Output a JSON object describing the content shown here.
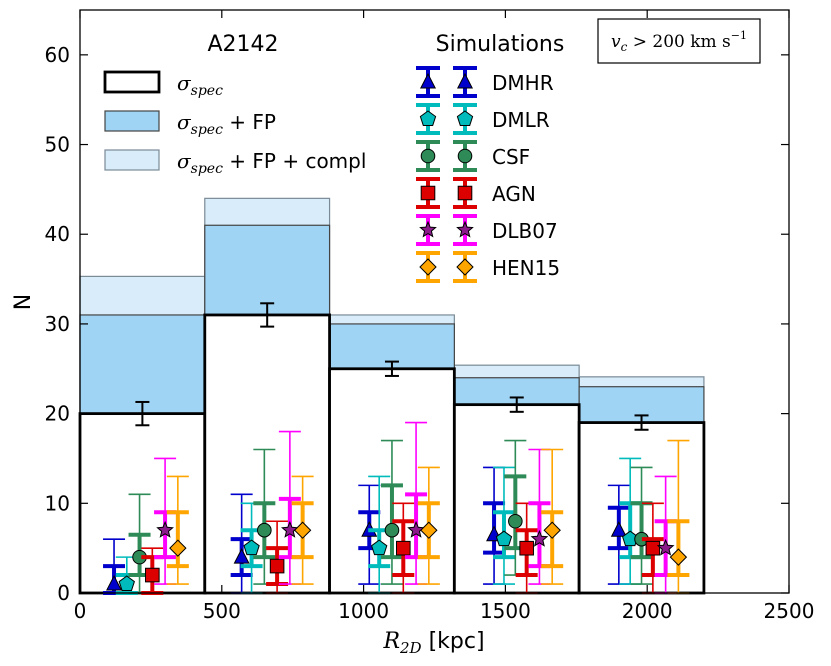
{
  "chart_data": {
    "type": "bar",
    "title": "A2142",
    "xlabel_math": "R",
    "xlabel_sub": "2D",
    "xlabel_unit": " [kpc]",
    "ylabel": "N",
    "xlim": [
      0,
      2500
    ],
    "ylim": [
      0,
      65
    ],
    "xticks": [
      0,
      500,
      1000,
      1500,
      2000,
      2500
    ],
    "yticks": [
      0,
      10,
      20,
      30,
      40,
      50,
      60
    ],
    "velocity_cut": {
      "math": "v",
      "sub": "c",
      "rel": " > 200 ",
      "unit": "km s",
      "exp": "−1"
    },
    "bin_edges": [
      0,
      440,
      880,
      1320,
      1760,
      2200
    ],
    "observed": [
      {
        "name": "σ_spec",
        "label_math": "σ",
        "label_sub": "spec",
        "label_rest": "",
        "fill": "#ffffff",
        "values": [
          20,
          31,
          25,
          21,
          19
        ],
        "errors": [
          1.3,
          1.3,
          0.8,
          0.8,
          0.8
        ]
      },
      {
        "name": "σ_spec + FP",
        "label_math": "σ",
        "label_sub": "spec",
        "label_rest": " + FP",
        "fill": "#9fd4f5",
        "values": [
          31,
          41,
          30,
          24,
          23
        ]
      },
      {
        "name": "σ_spec + FP + compl",
        "label_math": "σ",
        "label_sub": "spec",
        "label_rest": " + FP + compl",
        "fill": "#d8edf9",
        "values": [
          35.3,
          44,
          31,
          25.4,
          24.1
        ]
      }
    ],
    "simulations_title": "Simulations",
    "simulations": [
      {
        "name": "DMHR",
        "color": "#0000cc",
        "marker": "triangle",
        "x": [
          120,
          570,
          1020,
          1460,
          1900
        ],
        "median": [
          1,
          4,
          7,
          6.5,
          7
        ],
        "inner": [
          [
            0,
            3
          ],
          [
            2,
            6
          ],
          [
            5,
            9
          ],
          [
            4.5,
            10
          ],
          [
            5,
            9.5
          ]
        ],
        "outer": [
          [
            0,
            6
          ],
          [
            0,
            11
          ],
          [
            1,
            12
          ],
          [
            1,
            14
          ],
          [
            1,
            12
          ]
        ]
      },
      {
        "name": "DMLR",
        "color": "#00bbbb",
        "marker": "pentagon",
        "x": [
          165,
          605,
          1055,
          1495,
          1940
        ],
        "median": [
          1,
          5,
          5,
          6,
          6
        ],
        "inner": [
          [
            0,
            2
          ],
          [
            3,
            7
          ],
          [
            3,
            7
          ],
          [
            4,
            9
          ],
          [
            4,
            10
          ]
        ],
        "outer": [
          [
            0,
            4
          ],
          [
            0,
            10
          ],
          [
            0,
            13
          ],
          [
            1,
            14
          ],
          [
            1,
            15
          ]
        ]
      },
      {
        "name": "CSF",
        "color": "#2e8b57",
        "marker": "circle",
        "x": [
          210,
          650,
          1100,
          1535,
          1980
        ],
        "median": [
          4,
          7,
          7,
          8,
          6
        ],
        "inner": [
          [
            2,
            6.5
          ],
          [
            4,
            10
          ],
          [
            4,
            12
          ],
          [
            5,
            13
          ],
          [
            4,
            10
          ]
        ],
        "outer": [
          [
            0,
            11
          ],
          [
            1,
            16
          ],
          [
            1,
            17
          ],
          [
            2,
            17
          ],
          [
            1,
            14
          ]
        ]
      },
      {
        "name": "AGN",
        "color": "#dd0000",
        "marker": "square",
        "x": [
          255,
          695,
          1140,
          1575,
          2020
        ],
        "median": [
          2,
          3,
          5,
          5,
          5
        ],
        "inner": [
          [
            0,
            4
          ],
          [
            1,
            5
          ],
          [
            2,
            8
          ],
          [
            2,
            7
          ],
          [
            2,
            6
          ]
        ],
        "outer": [
          [
            0,
            5
          ],
          [
            0,
            8
          ],
          [
            0,
            10
          ],
          [
            0,
            10
          ],
          [
            0,
            10
          ]
        ]
      },
      {
        "name": "DLB07",
        "color": "#ff00ff",
        "marker": "star",
        "x": [
          300,
          740,
          1185,
          1620,
          2065
        ],
        "median": [
          7,
          7,
          7,
          6,
          5
        ],
        "inner": [
          [
            4,
            9
          ],
          [
            4,
            10.5
          ],
          [
            4,
            11
          ],
          [
            3,
            10
          ],
          [
            2,
            8
          ]
        ],
        "outer": [
          [
            1,
            15
          ],
          [
            1,
            18
          ],
          [
            1,
            19
          ],
          [
            1,
            16
          ],
          [
            0,
            13
          ]
        ]
      },
      {
        "name": "HEN15",
        "color": "#ffa500",
        "marker": "diamond",
        "x": [
          345,
          785,
          1230,
          1665,
          2110
        ],
        "median": [
          5,
          7,
          7,
          7,
          4
        ],
        "inner": [
          [
            3,
            9
          ],
          [
            4,
            10
          ],
          [
            4,
            10
          ],
          [
            3,
            9
          ],
          [
            2,
            8
          ]
        ],
        "outer": [
          [
            1,
            13
          ],
          [
            1,
            13
          ],
          [
            1,
            14
          ],
          [
            1,
            16
          ],
          [
            0,
            17
          ]
        ]
      }
    ]
  }
}
